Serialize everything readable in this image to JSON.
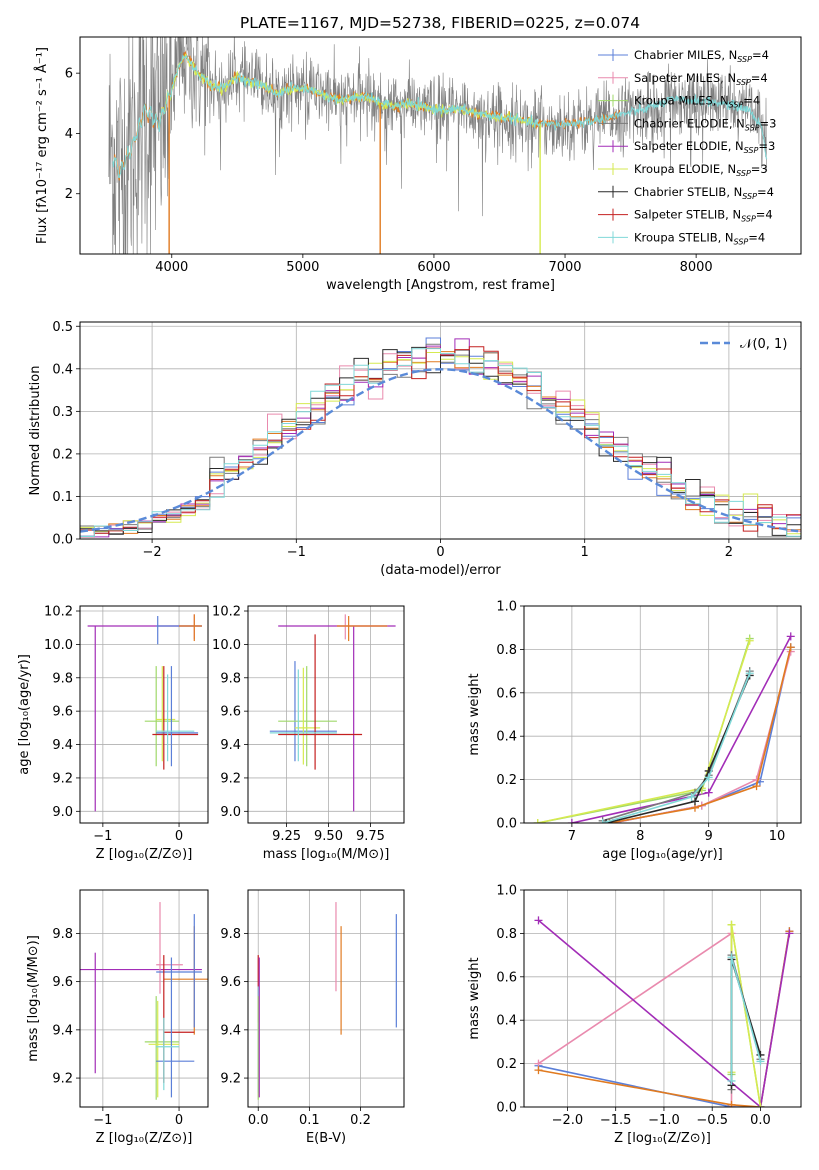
{
  "colors": [
    "#5b7fd8",
    "#e98aae",
    "#9fd86a",
    "#7a7a7a",
    "#a22db7",
    "#d6ea50",
    "#2a2a2a",
    "#c42020",
    "#80d8d8"
  ],
  "orange": "#e07a20",
  "gauss_color": "#5a8ad8",
  "chart_data": [
    {
      "id": "spectrum",
      "type": "line",
      "title": "PLATE=1167, MJD=52738, FIBERID=0225, z=0.074",
      "xlabel": "wavelength [Angstrom, rest frame]",
      "ylabel": "Flux [fλ10⁻¹⁷ erg cm⁻² s⁻¹ Å⁻¹]",
      "xlim": [
        3300,
        8800
      ],
      "ylim": [
        0,
        7.2
      ],
      "xticks": [
        4000,
        5000,
        6000,
        7000,
        8000
      ],
      "yticks": [
        2,
        4,
        6
      ],
      "legend_location": "right",
      "legend": [
        "Chabrier MILES, N_SSP=4",
        "Salpeter MILES, N_SSP=4",
        "Kroupa MILES, N_SSP=4",
        "Chabrier ELODIE, N_SSP=3",
        "Salpeter ELODIE, N_SSP=3",
        "Kroupa ELODIE, N_SSP=3",
        "Chabrier STELIB, N_SSP=4",
        "Salpeter STELIB, N_SSP=4",
        "Kroupa STELIB, N_SSP=4"
      ],
      "legend_display": [
        [
          "Chabrier MILES, N",
          "SSP",
          "=4"
        ],
        [
          "Salpeter MILES, N",
          "SSP",
          "=4"
        ],
        [
          "Kroupa MILES, N",
          "SSP",
          "=4"
        ],
        [
          "Chabrier ELODIE, N",
          "SSP",
          "=3"
        ],
        [
          "Salpeter ELODIE, N",
          "SSP",
          "=3"
        ],
        [
          "Kroupa ELODIE, N",
          "SSP",
          "=3"
        ],
        [
          "Chabrier STELIB, N",
          "SSP",
          "=4"
        ],
        [
          "Salpeter STELIB, N",
          "SSP",
          "=4"
        ],
        [
          "Kroupa STELIB, N",
          "SSP",
          "=4"
        ]
      ],
      "data_model_points": [
        [
          3550,
          3.3
        ],
        [
          3600,
          2.7
        ],
        [
          3700,
          3.6
        ],
        [
          3800,
          4.8
        ],
        [
          3900,
          4.3
        ],
        [
          3960,
          5.0
        ],
        [
          4000,
          5.5
        ],
        [
          4050,
          6.2
        ],
        [
          4100,
          6.6
        ],
        [
          4200,
          6.0
        ],
        [
          4300,
          5.6
        ],
        [
          4400,
          5.5
        ],
        [
          4500,
          5.9
        ],
        [
          4600,
          5.7
        ],
        [
          4700,
          5.6
        ],
        [
          4800,
          5.3
        ],
        [
          4900,
          5.5
        ],
        [
          5000,
          5.5
        ],
        [
          5100,
          5.4
        ],
        [
          5200,
          5.2
        ],
        [
          5300,
          5.1
        ],
        [
          5400,
          5.2
        ],
        [
          5500,
          5.2
        ],
        [
          5600,
          5.0
        ],
        [
          5700,
          4.9
        ],
        [
          5800,
          5.0
        ],
        [
          5900,
          4.9
        ],
        [
          6000,
          4.8
        ],
        [
          6200,
          4.8
        ],
        [
          6400,
          4.6
        ],
        [
          6600,
          4.5
        ],
        [
          6800,
          4.3
        ],
        [
          7000,
          4.3
        ],
        [
          7200,
          4.4
        ],
        [
          7400,
          4.6
        ],
        [
          7600,
          4.8
        ],
        [
          7800,
          5.1
        ],
        [
          8000,
          5.1
        ],
        [
          8200,
          5.0
        ],
        [
          8400,
          4.8
        ],
        [
          8500,
          4.2
        ],
        [
          8550,
          2.9
        ]
      ],
      "gaps": [
        3980,
        5590,
        6810
      ]
    },
    {
      "id": "residuals",
      "type": "line",
      "xlabel": "(data-model)/error",
      "ylabel": "Normed distribution",
      "xlim": [
        -2.5,
        2.5
      ],
      "ylim": [
        0,
        0.51
      ],
      "xticks": [
        -2,
        -1,
        0,
        1,
        2
      ],
      "xtick_labels": [
        "−2",
        "−1",
        "0",
        "1",
        "2"
      ],
      "yticks": [
        0.0,
        0.1,
        0.2,
        0.3,
        0.4,
        0.5
      ],
      "ytick_labels": [
        "0.0",
        "0.1",
        "0.2",
        "0.3",
        "0.4",
        "0.5"
      ],
      "legend": "𝒩(0, 1)",
      "legend_location": "upper right",
      "bin_width": 0.1,
      "description": "histograms of residuals for 9 fits; reference N(0,1)"
    },
    {
      "id": "z_age",
      "type": "scatter",
      "xlabel": "Z [log₁₀(Z/Z⊙)]",
      "ylabel": "age  [log₁₀(age/yr)]",
      "xlim": [
        -1.3,
        0.38
      ],
      "ylim": [
        8.93,
        10.23
      ],
      "xticks": [
        -1,
        0
      ],
      "xtick_labels": [
        "−1",
        "0"
      ],
      "yticks": [
        9.0,
        9.2,
        9.4,
        9.6,
        9.8,
        10.0,
        10.2
      ],
      "ytick_labels": [
        "9.0",
        "9.2",
        "9.4",
        "9.6",
        "9.8",
        "10.0",
        "10.2"
      ]
    },
    {
      "id": "mass_age",
      "type": "scatter",
      "xlabel": "mass [log₁₀(M/M⊙)]",
      "ylabel": "",
      "xlim": [
        9.02,
        9.95
      ],
      "ylim": [
        8.93,
        10.23
      ],
      "xticks": [
        9.25,
        9.5,
        9.75
      ],
      "xtick_labels": [
        "9.25",
        "9.50",
        "9.75"
      ],
      "yticks": [
        9.0,
        9.2,
        9.4,
        9.6,
        9.8,
        10.0,
        10.2
      ],
      "ytick_labels": [
        "9.0",
        "9.2",
        "9.4",
        "9.6",
        "9.8",
        "10.0",
        "10.2"
      ]
    },
    {
      "id": "age_weight",
      "type": "line",
      "xlabel": "age  [log₁₀(age/yr)]",
      "ylabel": "mass weight",
      "xlim": [
        6.3,
        10.35
      ],
      "ylim": [
        0,
        1.0
      ],
      "xticks": [
        7,
        8,
        9,
        10
      ],
      "xtick_labels": [
        "7",
        "8",
        "9",
        "10"
      ],
      "yticks": [
        0.0,
        0.2,
        0.4,
        0.6,
        0.8,
        1.0
      ],
      "ytick_labels": [
        "0.0",
        "0.2",
        "0.4",
        "0.6",
        "0.8",
        "1.0"
      ],
      "series": [
        {
          "c": 0,
          "x": [
            7.6,
            8.9,
            9.75,
            10.2
          ],
          "y": [
            0.0,
            0.08,
            0.19,
            0.81
          ]
        },
        {
          "c": 1,
          "x": [
            7.6,
            8.9,
            9.7,
            10.2
          ],
          "y": [
            0.0,
            0.08,
            0.2,
            0.79
          ]
        },
        {
          "c": "orange",
          "x": [
            7.55,
            8.8,
            9.7,
            10.2
          ],
          "y": [
            0.0,
            0.07,
            0.17,
            0.81
          ]
        },
        {
          "c": 4,
          "x": [
            7.0,
            9.0,
            10.2
          ],
          "y": [
            0.0,
            0.14,
            0.86
          ]
        },
        {
          "c": 2,
          "x": [
            6.5,
            8.9,
            9.6
          ],
          "y": [
            0.0,
            0.15,
            0.85
          ]
        },
        {
          "c": 5,
          "x": [
            6.5,
            8.9,
            9.6
          ],
          "y": [
            0.0,
            0.16,
            0.84
          ]
        },
        {
          "c": 3,
          "x": [
            7.45,
            8.8,
            9.0,
            9.6
          ],
          "y": [
            0.01,
            0.14,
            0.22,
            0.7
          ]
        },
        {
          "c": 6,
          "x": [
            7.5,
            8.8,
            9.0,
            9.6
          ],
          "y": [
            0.0,
            0.1,
            0.24,
            0.68
          ]
        },
        {
          "c": 8,
          "x": [
            7.45,
            8.75,
            9.0,
            9.6
          ],
          "y": [
            0.0,
            0.12,
            0.21,
            0.69
          ]
        }
      ]
    },
    {
      "id": "z_mass",
      "type": "scatter",
      "xlabel": "Z [log₁₀(Z/Z⊙)]",
      "ylabel": "mass [log₁₀(M/M⊙)]",
      "xlim": [
        -1.3,
        0.38
      ],
      "ylim": [
        9.08,
        9.98
      ],
      "xticks": [
        -1,
        0
      ],
      "xtick_labels": [
        "−1",
        "0"
      ],
      "yticks": [
        9.2,
        9.4,
        9.6,
        9.8
      ],
      "ytick_labels": [
        "9.2",
        "9.4",
        "9.6",
        "9.8"
      ]
    },
    {
      "id": "ebv_mass",
      "type": "scatter",
      "xlabel": "E(B-V)",
      "ylabel": "",
      "xlim": [
        -0.02,
        0.285
      ],
      "ylim": [
        9.08,
        9.98
      ],
      "xticks": [
        0.0,
        0.1,
        0.2
      ],
      "xtick_labels": [
        "0.0",
        "0.1",
        "0.2"
      ],
      "yticks": [
        9.2,
        9.4,
        9.6,
        9.8
      ],
      "ytick_labels": [
        "9.2",
        "9.4",
        "9.6",
        "9.8"
      ]
    },
    {
      "id": "z_weight",
      "type": "line",
      "xlabel": "Z [log₁₀(Z/Z⊙)]",
      "ylabel": "mass weight",
      "xlim": [
        -2.45,
        0.42
      ],
      "ylim": [
        0,
        1.0
      ],
      "xticks": [
        -2.0,
        -1.5,
        -1.0,
        -0.5,
        0.0
      ],
      "xtick_labels": [
        "−2.0",
        "−1.5",
        "−1.0",
        "−0.5",
        "0.0"
      ],
      "yticks": [
        0.0,
        0.2,
        0.4,
        0.6,
        0.8,
        1.0
      ],
      "ytick_labels": [
        "0.0",
        "0.2",
        "0.4",
        "0.6",
        "0.8",
        "1.0"
      ],
      "series": [
        {
          "c": 0,
          "x": [
            -2.3,
            -0.3,
            0.0,
            0.3
          ],
          "y": [
            0.19,
            0.0,
            0.0,
            0.81
          ]
        },
        {
          "c": 1,
          "x": [
            -2.3,
            -0.3,
            -0.3
          ],
          "y": [
            0.2,
            0.8,
            0.0
          ]
        },
        {
          "c": "orange",
          "x": [
            -2.3,
            -0.3,
            0.0,
            0.3
          ],
          "y": [
            0.17,
            0.01,
            0.0,
            0.81
          ]
        },
        {
          "c": 4,
          "x": [
            -2.3,
            0.0,
            0.3
          ],
          "y": [
            0.86,
            0.0,
            0.8
          ]
        },
        {
          "c": 2,
          "x": [
            -0.3,
            -0.3,
            0.0
          ],
          "y": [
            0.15,
            0.84,
            0.0
          ]
        },
        {
          "c": 5,
          "x": [
            -0.3,
            -0.3,
            0.0
          ],
          "y": [
            0.16,
            0.84,
            0.0
          ]
        },
        {
          "c": 3,
          "x": [
            -0.3,
            -0.3,
            0.0
          ],
          "y": [
            0.08,
            0.7,
            0.22
          ]
        },
        {
          "c": 6,
          "x": [
            -0.3,
            -0.3,
            0.0
          ],
          "y": [
            0.1,
            0.68,
            0.24
          ]
        },
        {
          "c": 8,
          "x": [
            -0.3,
            -0.3,
            0.0
          ],
          "y": [
            0.12,
            0.69,
            0.21
          ]
        }
      ]
    }
  ]
}
